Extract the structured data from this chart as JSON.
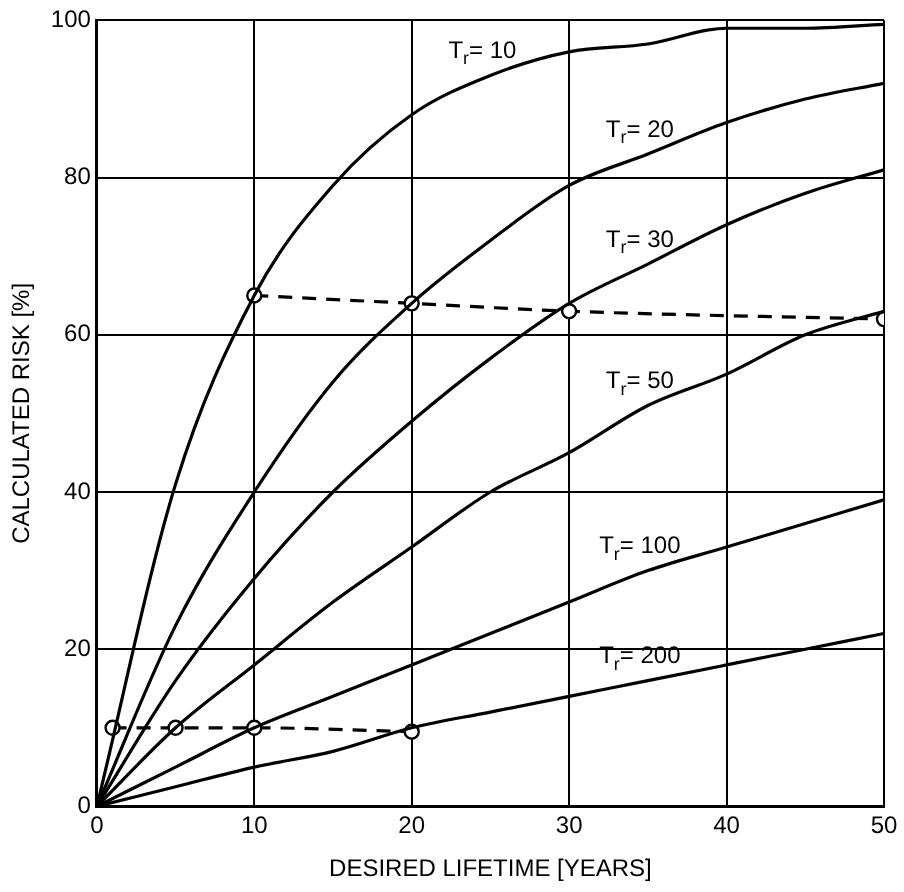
{
  "chart_data": {
    "type": "line",
    "xlabel": "DESIRED LIFETIME [YEARS]",
    "ylabel": "CALCULATED RISK [%]",
    "x": [
      0,
      5,
      10,
      15,
      20,
      25,
      30,
      35,
      40,
      45,
      50
    ],
    "series": [
      {
        "name": "T$_{r}$= 10",
        "color": "#000000",
        "values": [
          0,
          41,
          65,
          79,
          88,
          93,
          96,
          97,
          99,
          99,
          99.5
        ]
      },
      {
        "name": "T$_{r}$= 20",
        "color": "#000000",
        "values": [
          0,
          23,
          40,
          54,
          64,
          72,
          79,
          83,
          87,
          90,
          92
        ]
      },
      {
        "name": "T$_{r}$= 30",
        "color": "#000000",
        "values": [
          0,
          16,
          29,
          40,
          49,
          57,
          64,
          69,
          74,
          78,
          81
        ]
      },
      {
        "name": "T$_{r}$= 50",
        "color": "#000000",
        "values": [
          0,
          10,
          18,
          26,
          33,
          40,
          45,
          51,
          55,
          60,
          63
        ]
      },
      {
        "name": "T$_{r}$= 100",
        "color": "#000000",
        "values": [
          0,
          5,
          10,
          14,
          18,
          22,
          26,
          30,
          33,
          36,
          39
        ]
      },
      {
        "name": "T$_{r}$= 200",
        "color": "#000000",
        "values": [
          0,
          2.5,
          5,
          7,
          10,
          12,
          14,
          16,
          18,
          20,
          22
        ]
      },
      {
        "color": "#000000",
        "x": [
          10,
          20,
          30,
          50
        ],
        "values": [
          65,
          64,
          63,
          62
        ],
        "line_style": "dashed",
        "marker": "circle"
      },
      {
        "color": "#000000",
        "x": [
          1,
          5,
          10,
          20
        ],
        "values": [
          10,
          10,
          10,
          9.5
        ],
        "line_style": "dashed",
        "marker": "circle"
      }
    ],
    "xlim": [
      0,
      50
    ],
    "xticks": [
      0,
      10,
      20,
      30,
      40,
      50
    ],
    "ylim": [
      0,
      100
    ],
    "yticks": [
      0,
      20,
      40,
      60,
      80,
      100
    ],
    "grid": true,
    "legend": false,
    "marker": "none",
    "line_style": "solid"
  }
}
